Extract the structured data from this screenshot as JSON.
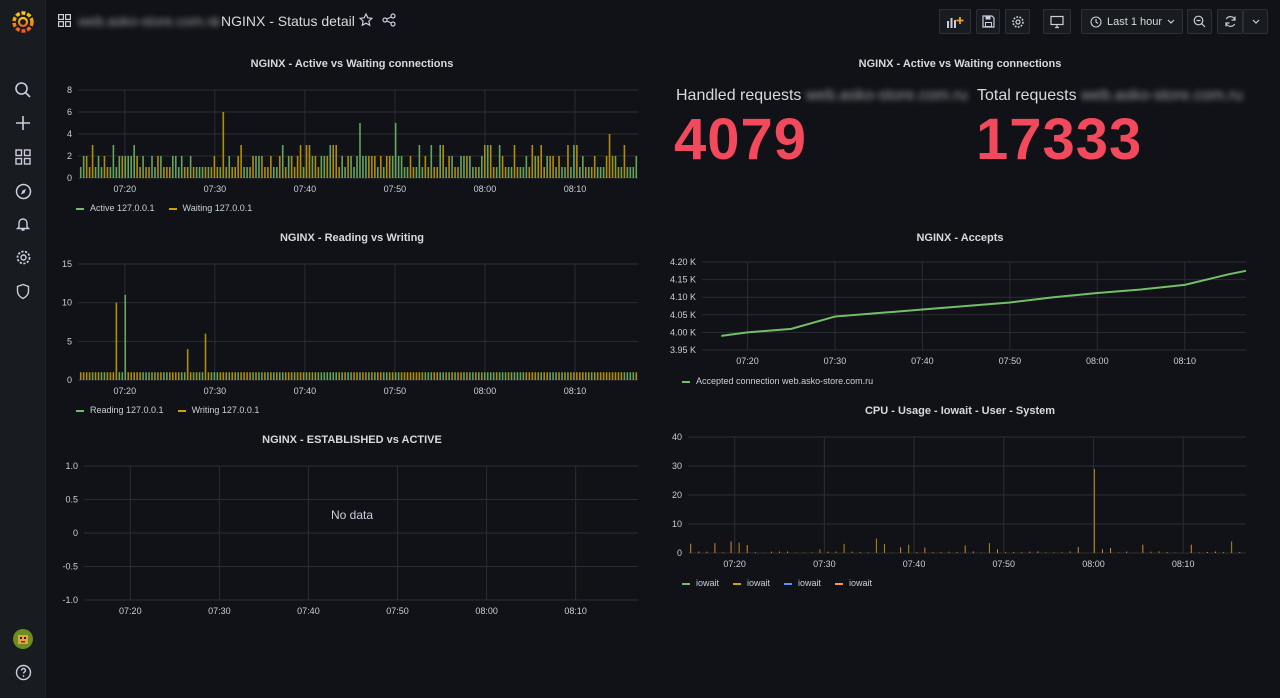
{
  "header": {
    "folder": "web.asko-store.com.ru",
    "separator": "/",
    "dashboard_title": "NGINX - Status detail",
    "time_range": "Last 1 hour"
  },
  "panels": {
    "active_waiting": {
      "title": "NGINX - Active vs Waiting connections",
      "legend": [
        "Active 127.0.0.1",
        "Waiting 127.0.0.1"
      ]
    },
    "reading_writing": {
      "title": "NGINX - Reading vs Writing",
      "legend": [
        "Reading 127.0.0.1",
        "Writing 127.0.0.1"
      ]
    },
    "established": {
      "title": "NGINX - ESTABLISHED vs ACTIVE",
      "no_data": "No data"
    },
    "stats": {
      "title": "NGINX - Active vs Waiting connections",
      "handled_label": "Handled requests",
      "handled_host": "web.asko-store.com.ru",
      "handled_value": "4079",
      "total_label": "Total requests",
      "total_host": "web.asko-store.com.ru",
      "total_value": "17333"
    },
    "accepts": {
      "title": "NGINX - Accepts",
      "legend": [
        "Accepted connection web.asko-store.com.ru"
      ]
    },
    "cpu": {
      "title": "CPU - Usage - Iowait - User - System",
      "legend": [
        "iowait",
        "iowait",
        "iowait",
        "iowait"
      ]
    }
  },
  "colors": {
    "green": "#73bf69",
    "yellow": "#cca300",
    "blue": "#5794f2",
    "orange": "#ff9830",
    "stat_red": "#f2495c"
  },
  "chart_data": [
    {
      "type": "bar",
      "title": "NGINX - Active vs Waiting connections",
      "x_ticks": [
        "07:20",
        "07:30",
        "07:40",
        "07:50",
        "08:00",
        "08:10"
      ],
      "y_ticks": [
        "0",
        "2",
        "4",
        "6",
        "8"
      ],
      "ylim": [
        0,
        8
      ],
      "series": [
        {
          "name": "Active 127.0.0.1",
          "color": "#73bf69"
        },
        {
          "name": "Waiting 127.0.0.1",
          "color": "#cca300"
        }
      ],
      "peaks": [
        {
          "x": "07:31",
          "y": 6
        },
        {
          "x": "07:50",
          "y": 5
        },
        {
          "x": "07:46",
          "y": 5
        },
        {
          "x": "08:14",
          "y": 4
        }
      ]
    },
    {
      "type": "bar",
      "title": "NGINX - Reading vs Writing",
      "x_ticks": [
        "07:20",
        "07:30",
        "07:40",
        "07:50",
        "08:00",
        "08:10"
      ],
      "y_ticks": [
        "0",
        "5",
        "10",
        "15"
      ],
      "ylim": [
        0,
        15
      ],
      "series": [
        {
          "name": "Reading 127.0.0.1",
          "color": "#73bf69"
        },
        {
          "name": "Writing 127.0.0.1",
          "color": "#cca300"
        }
      ],
      "peaks": [
        {
          "x": "07:20",
          "y": 11
        },
        {
          "x": "07:19",
          "y": 10
        },
        {
          "x": "07:29",
          "y": 6
        },
        {
          "x": "07:27",
          "y": 4
        }
      ]
    },
    {
      "type": "line",
      "title": "NGINX - ESTABLISHED vs ACTIVE",
      "x_ticks": [
        "07:20",
        "07:30",
        "07:40",
        "07:50",
        "08:00",
        "08:10"
      ],
      "y_ticks": [
        "-1.0",
        "-0.5",
        "0",
        "0.5",
        "1.0"
      ],
      "ylim": [
        -1,
        1
      ],
      "series": []
    },
    {
      "type": "line",
      "title": "NGINX - Accepts",
      "x_ticks": [
        "07:20",
        "07:30",
        "07:40",
        "07:50",
        "08:00",
        "08:10"
      ],
      "y_ticks": [
        "3.95 K",
        "4.00 K",
        "4.05 K",
        "4.10 K",
        "4.15 K",
        "4.20 K"
      ],
      "ylim": [
        3950,
        4200
      ],
      "series": [
        {
          "name": "Accepted connection web.asko-store.com.ru",
          "color": "#73bf69",
          "x": [
            "07:17",
            "07:20",
            "07:25",
            "07:30",
            "07:35",
            "07:40",
            "07:45",
            "07:50",
            "07:55",
            "08:00",
            "08:05",
            "08:10",
            "08:15",
            "08:17"
          ],
          "values": [
            3990,
            4000,
            4010,
            4045,
            4055,
            4065,
            4075,
            4085,
            4100,
            4112,
            4122,
            4135,
            4165,
            4175
          ]
        }
      ]
    },
    {
      "type": "bar",
      "title": "CPU - Usage - Iowait - User - System",
      "x_ticks": [
        "07:20",
        "07:30",
        "07:40",
        "07:50",
        "08:00",
        "08:10"
      ],
      "y_ticks": [
        "0",
        "10",
        "20",
        "30",
        "40"
      ],
      "ylim": [
        0,
        40
      ],
      "series": [
        {
          "name": "iowait",
          "color": "#73bf69"
        },
        {
          "name": "iowait",
          "color": "#cca300"
        },
        {
          "name": "iowait",
          "color": "#5794f2"
        },
        {
          "name": "iowait",
          "color": "#ff9830"
        }
      ],
      "peaks": [
        {
          "x": "08:00",
          "y": 29
        },
        {
          "x": "07:20",
          "y": 4
        },
        {
          "x": "07:36",
          "y": 5
        },
        {
          "x": "08:15",
          "y": 4
        }
      ]
    }
  ]
}
